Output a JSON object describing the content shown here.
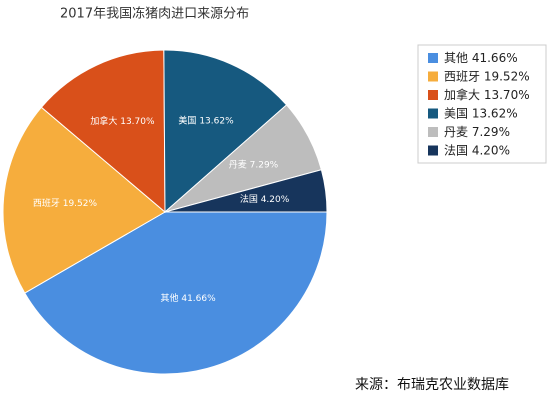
{
  "chart_data": {
    "type": "pie",
    "title": "2017年我国冻猪肉进口来源分布",
    "categories": [
      "其他",
      "西班牙",
      "加拿大",
      "美国",
      "丹麦",
      "法国"
    ],
    "values": [
      41.66,
      19.52,
      13.7,
      13.62,
      7.29,
      4.2
    ],
    "value_labels": [
      "41.66%",
      "19.52%",
      "13.70%",
      "13.62%",
      "7.29%",
      "4.20%"
    ],
    "colors": [
      "#4a8ee0",
      "#f6ad3d",
      "#d9501a",
      "#16597f",
      "#bdbdbd",
      "#17355c"
    ],
    "legend": "right",
    "source": "来源：布瑞克农业数据库"
  }
}
